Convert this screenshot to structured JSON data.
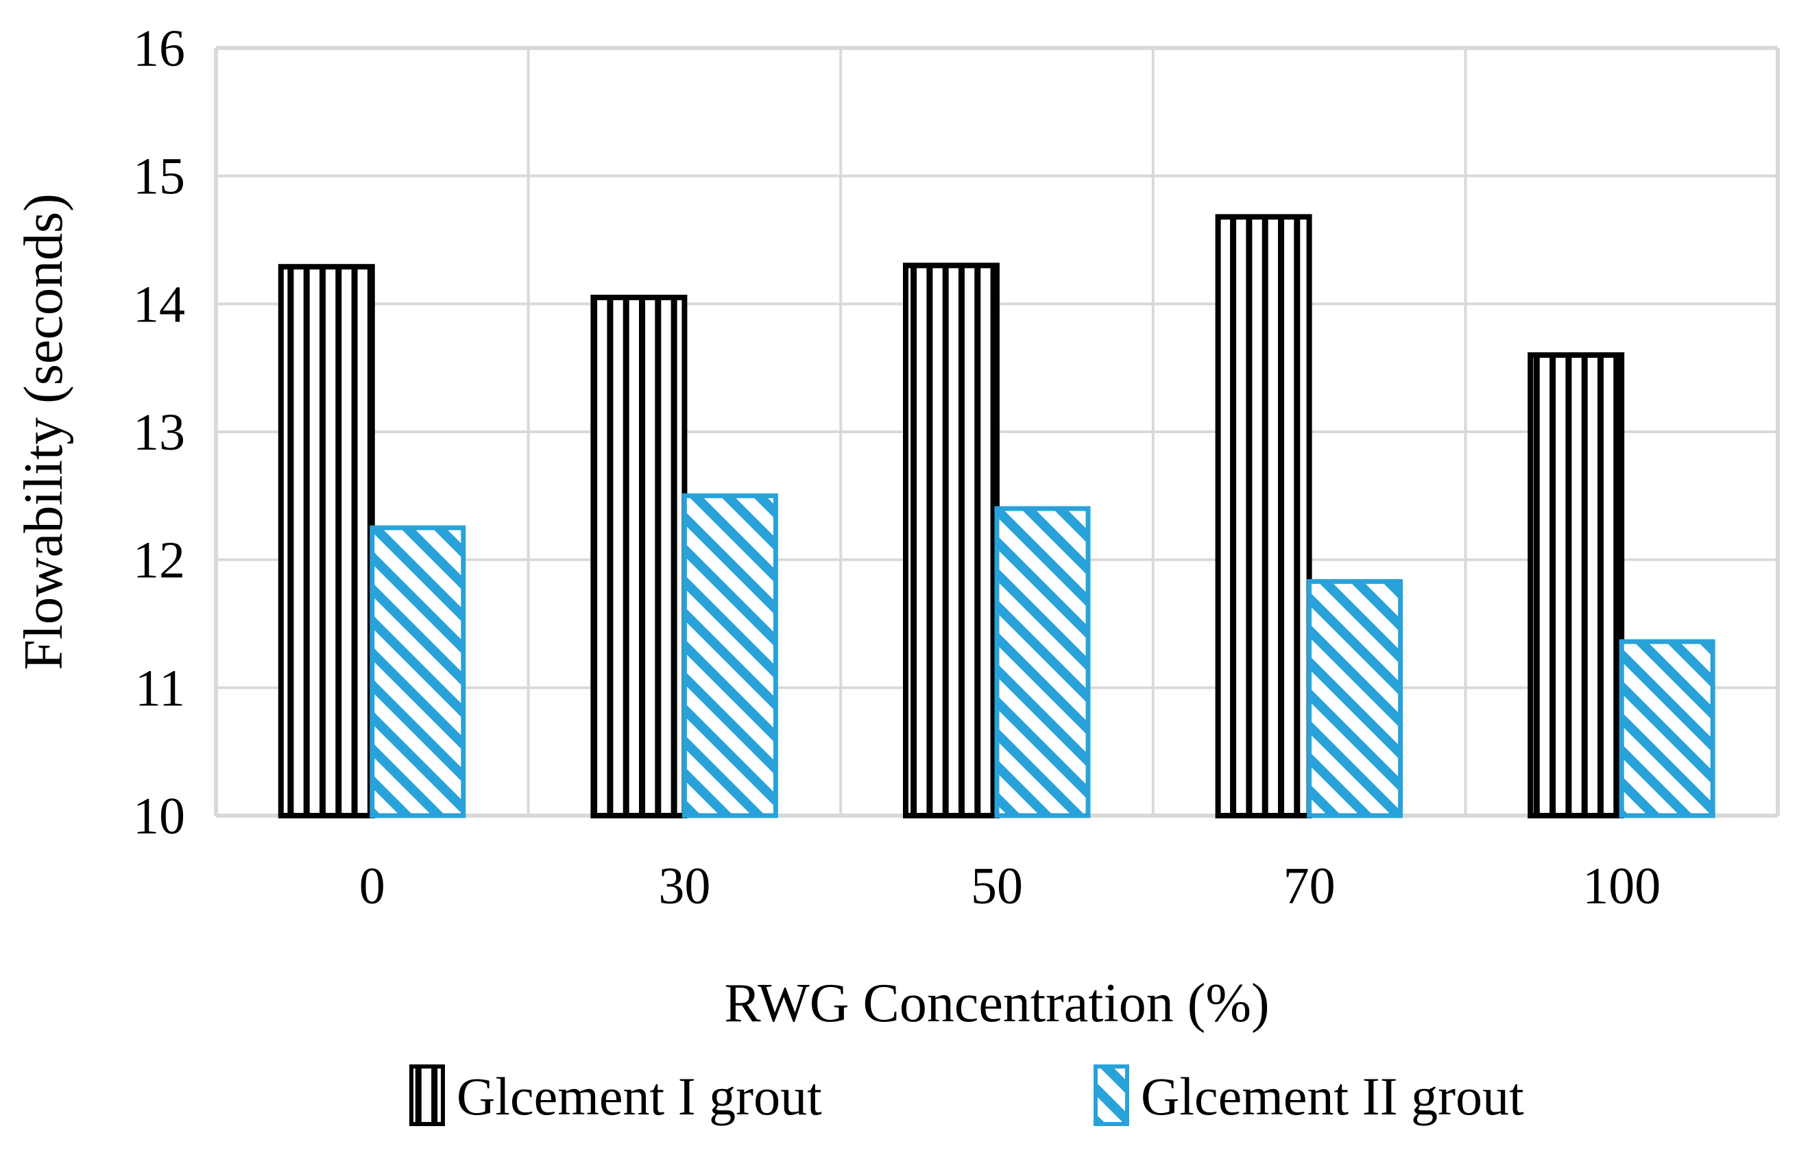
{
  "chart_data": {
    "type": "bar",
    "title": "",
    "xlabel": "RWG Concentration (%)",
    "ylabel": "Flowability (seconds)",
    "categories": [
      "0",
      "30",
      "50",
      "70",
      "100"
    ],
    "series": [
      {
        "name": "Glcement I grout",
        "pattern": "vertical-stripes",
        "color": "#000000",
        "values": [
          14.29,
          14.05,
          14.3,
          14.68,
          13.6
        ]
      },
      {
        "name": "Glcement II grout",
        "pattern": "diagonal-stripes",
        "color": "#29A2D9",
        "values": [
          12.25,
          12.5,
          12.4,
          11.83,
          11.36
        ]
      }
    ],
    "ylim": [
      10,
      16
    ],
    "yticks": [
      10,
      11,
      12,
      13,
      14,
      15,
      16
    ],
    "grid": true,
    "gridline_color": "#D9D9D9",
    "background_color": "#FFFFFF",
    "legend_position": "bottom"
  }
}
